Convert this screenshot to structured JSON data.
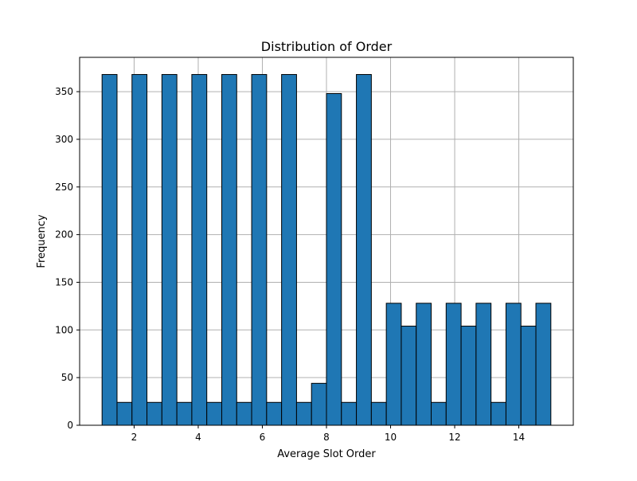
{
  "chart_data": {
    "type": "bar",
    "title": "Distribution of Order",
    "xlabel": "Average Slot Order",
    "ylabel": "Frequency",
    "xlim": [
      0.3,
      15.7
    ],
    "ylim": [
      0,
      386
    ],
    "grid": true,
    "bar_color": "#1f77b4",
    "edge_color": "#000000",
    "grid_color": "#b0b0b0",
    "bins": [
      {
        "x0": 1.0,
        "x1": 1.4667,
        "value": 368
      },
      {
        "x0": 1.4667,
        "x1": 1.9333,
        "value": 24
      },
      {
        "x0": 1.9333,
        "x1": 2.4,
        "value": 368
      },
      {
        "x0": 2.4,
        "x1": 2.8667,
        "value": 24
      },
      {
        "x0": 2.8667,
        "x1": 3.3333,
        "value": 368
      },
      {
        "x0": 3.3333,
        "x1": 3.8,
        "value": 24
      },
      {
        "x0": 3.8,
        "x1": 4.2667,
        "value": 368
      },
      {
        "x0": 4.2667,
        "x1": 4.7333,
        "value": 24
      },
      {
        "x0": 4.7333,
        "x1": 5.2,
        "value": 368
      },
      {
        "x0": 5.2,
        "x1": 5.6667,
        "value": 24
      },
      {
        "x0": 5.6667,
        "x1": 6.1333,
        "value": 368
      },
      {
        "x0": 6.1333,
        "x1": 6.6,
        "value": 24
      },
      {
        "x0": 6.6,
        "x1": 7.0667,
        "value": 368
      },
      {
        "x0": 7.0667,
        "x1": 7.5333,
        "value": 24
      },
      {
        "x0": 7.5333,
        "x1": 8.0,
        "value": 44
      },
      {
        "x0": 8.0,
        "x1": 8.4667,
        "value": 348
      },
      {
        "x0": 8.4667,
        "x1": 8.9333,
        "value": 24
      },
      {
        "x0": 8.9333,
        "x1": 9.4,
        "value": 368
      },
      {
        "x0": 9.4,
        "x1": 9.8667,
        "value": 24
      },
      {
        "x0": 9.8667,
        "x1": 10.3333,
        "value": 128
      },
      {
        "x0": 10.3333,
        "x1": 10.8,
        "value": 104
      },
      {
        "x0": 10.8,
        "x1": 11.2667,
        "value": 128
      },
      {
        "x0": 11.2667,
        "x1": 11.7333,
        "value": 24
      },
      {
        "x0": 11.7333,
        "x1": 12.2,
        "value": 128
      },
      {
        "x0": 12.2,
        "x1": 12.6667,
        "value": 104
      },
      {
        "x0": 12.6667,
        "x1": 13.1333,
        "value": 128
      },
      {
        "x0": 13.1333,
        "x1": 13.6,
        "value": 24
      },
      {
        "x0": 13.6,
        "x1": 14.0667,
        "value": 128
      },
      {
        "x0": 14.0667,
        "x1": 14.5333,
        "value": 104
      },
      {
        "x0": 14.5333,
        "x1": 15.0,
        "value": 128
      }
    ],
    "x_ticks": [
      2,
      4,
      6,
      8,
      10,
      12,
      14
    ],
    "y_ticks": [
      0,
      50,
      100,
      150,
      200,
      250,
      300,
      350
    ]
  }
}
